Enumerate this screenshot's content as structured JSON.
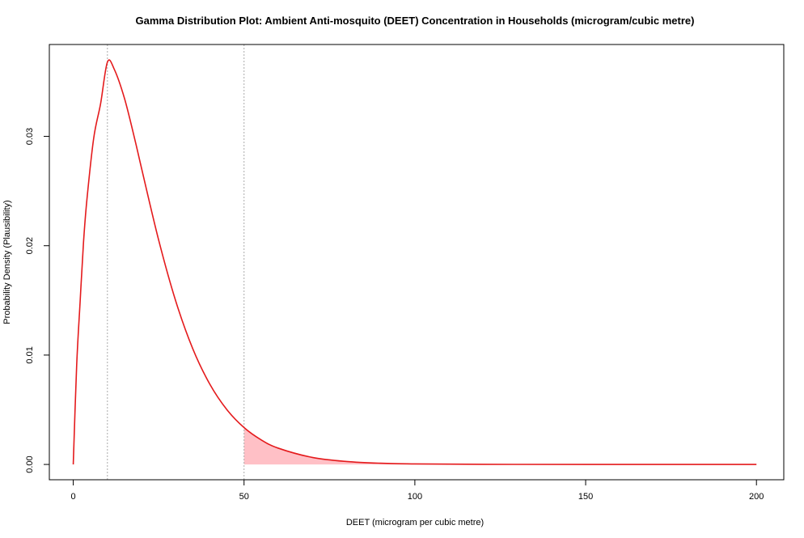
{
  "chart_data": {
    "type": "line",
    "title": "Gamma Distribution Plot: Ambient Anti-mosquito (DEET) Concentration in Households (microgram/cubic metre)",
    "xlabel": "DEET (microgram per cubic metre)",
    "ylabel": "Probability Density (Plausibility)",
    "xlim": [
      -7,
      208
    ],
    "ylim": [
      -0.0014,
      0.0384
    ],
    "x_ticks": [
      0,
      50,
      100,
      150,
      200
    ],
    "x_tick_labels": [
      "0",
      "50",
      "100",
      "150",
      "200"
    ],
    "y_ticks": [
      0.0,
      0.01,
      0.02,
      0.03
    ],
    "y_tick_labels": [
      "0.00",
      "0.01",
      "0.02",
      "0.03"
    ],
    "grid": false,
    "legend": "none",
    "series": [
      {
        "x": [
          0,
          1,
          2,
          3,
          4,
          6,
          8,
          10,
          12,
          15,
          18,
          20,
          25,
          30,
          35,
          40,
          45,
          50,
          55,
          60,
          70,
          80,
          90,
          100,
          120,
          150,
          200
        ],
        "y": [
          0.0,
          0.00905,
          0.01482,
          0.0203,
          0.02422,
          0.02986,
          0.03298,
          0.03679,
          0.03614,
          0.03347,
          0.02975,
          0.02707,
          0.02052,
          0.01494,
          0.01057,
          0.00733,
          0.005,
          0.00337,
          0.00225,
          0.00149,
          0.00064,
          0.00027,
          0.00011,
          4.5e-05,
          7e-06,
          4e-07,
          0.0
        ]
      }
    ],
    "reference_lines_x": [
      10,
      50
    ],
    "shaded_region": {
      "x_from": 50,
      "x_to": 200
    },
    "colors": {
      "curve": "#e41a1c",
      "shade": "#ffc0c6",
      "reference_line": "#aaaaaa"
    }
  }
}
